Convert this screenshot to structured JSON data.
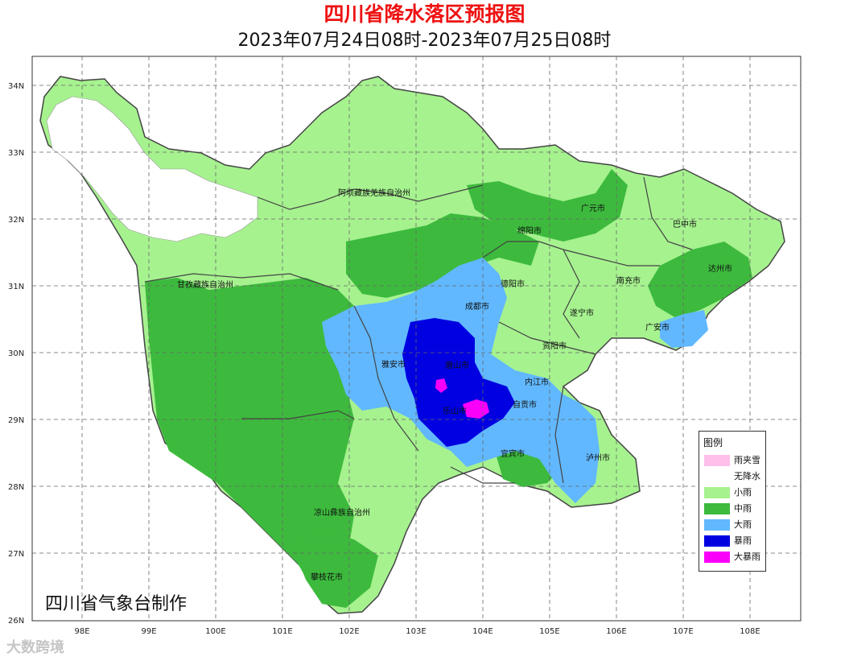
{
  "header": {
    "title": "四川省降水落区预报图",
    "subtitle": "2023年07月24日08时-2023年07月25日08时"
  },
  "axes": {
    "lat_labels": [
      "34N",
      "33N",
      "32N",
      "31N",
      "30N",
      "29N",
      "28N",
      "27N",
      "26N"
    ],
    "lon_labels": [
      "98E",
      "99E",
      "100E",
      "101E",
      "102E",
      "103E",
      "104E",
      "105E",
      "106E",
      "107E",
      "108E"
    ]
  },
  "regions": [
    {
      "name": "阿坝藏族羌族自治州"
    },
    {
      "name": "甘孜藏族自治州"
    },
    {
      "name": "广元市"
    },
    {
      "name": "巴中市"
    },
    {
      "name": "绵阳市"
    },
    {
      "name": "达州市"
    },
    {
      "name": "德阳市"
    },
    {
      "name": "南充市"
    },
    {
      "name": "成都市"
    },
    {
      "name": "遂宁市"
    },
    {
      "name": "广安市"
    },
    {
      "name": "雅安市"
    },
    {
      "name": "资阳市"
    },
    {
      "name": "眉山市"
    },
    {
      "name": "内江市"
    },
    {
      "name": "乐山市"
    },
    {
      "name": "自贡市"
    },
    {
      "name": "宜宾市"
    },
    {
      "name": "泸州市"
    },
    {
      "name": "凉山彝族自治州"
    },
    {
      "name": "攀枝花市"
    }
  ],
  "legend": {
    "title": "图例",
    "items": [
      {
        "label": "雨夹雪",
        "color": "#ffbfea"
      },
      {
        "label": "无降水",
        "color": "#ffffff"
      },
      {
        "label": "小雨",
        "color": "#a6f28f"
      },
      {
        "label": "中雨",
        "color": "#3dba3d"
      },
      {
        "label": "大雨",
        "color": "#61b8ff"
      },
      {
        "label": "暴雨",
        "color": "#0000e1"
      },
      {
        "label": "大暴雨",
        "color": "#fa00fa"
      }
    ]
  },
  "footer": {
    "credit": "四川省气象台制作",
    "watermark": "大数跨境"
  }
}
